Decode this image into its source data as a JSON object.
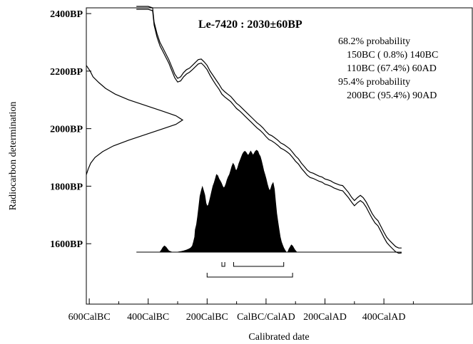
{
  "chart_data": {
    "type": "area",
    "title": "Le-7420 : 2030±60BP",
    "xlabel": "Calibrated date",
    "ylabel": "Radiocarbon determination",
    "yticks": [
      "2400BP",
      "2200BP",
      "2000BP",
      "1800BP",
      "1600BP"
    ],
    "ytick_values": [
      2400,
      2200,
      2000,
      1800,
      1600
    ],
    "ylim": [
      1390,
      2420
    ],
    "xticks": [
      "600CalBC",
      "400CalBC",
      "200CalBC",
      "CalBC/CalAD",
      "200CalAD",
      "400CalAD"
    ],
    "xtick_values": [
      -600,
      -400,
      -200,
      0,
      200,
      400
    ],
    "xlim": [
      -610,
      700
    ],
    "annotations": [
      "68.2% probability",
      "150BC ( 0.8%) 140BC",
      "110BC (67.4%) 60AD",
      "95.4% probability",
      "200BC (95.4%) 90AD"
    ],
    "ranges_68": [
      [
        -150,
        -140
      ],
      [
        -110,
        60
      ]
    ],
    "ranges_95": [
      [
        -200,
        90
      ]
    ],
    "calibration_curve": {
      "upper": [
        [
          -440,
          2425
        ],
        [
          -400,
          2425
        ],
        [
          -385,
          2420
        ],
        [
          -380,
          2370
        ],
        [
          -370,
          2330
        ],
        [
          -360,
          2300
        ],
        [
          -350,
          2280
        ],
        [
          -340,
          2260
        ],
        [
          -330,
          2240
        ],
        [
          -320,
          2215
        ],
        [
          -310,
          2190
        ],
        [
          -300,
          2175
        ],
        [
          -290,
          2180
        ],
        [
          -280,
          2195
        ],
        [
          -270,
          2205
        ],
        [
          -260,
          2210
        ],
        [
          -250,
          2220
        ],
        [
          -240,
          2230
        ],
        [
          -230,
          2240
        ],
        [
          -220,
          2242
        ],
        [
          -210,
          2232
        ],
        [
          -200,
          2220
        ],
        [
          -190,
          2200
        ],
        [
          -180,
          2185
        ],
        [
          -170,
          2170
        ],
        [
          -160,
          2155
        ],
        [
          -150,
          2138
        ],
        [
          -140,
          2128
        ],
        [
          -130,
          2120
        ],
        [
          -120,
          2112
        ],
        [
          -110,
          2100
        ],
        [
          -100,
          2088
        ],
        [
          -90,
          2080
        ],
        [
          -80,
          2070
        ],
        [
          -70,
          2060
        ],
        [
          -60,
          2050
        ],
        [
          -50,
          2040
        ],
        [
          -40,
          2030
        ],
        [
          -30,
          2020
        ],
        [
          -20,
          2012
        ],
        [
          -10,
          2002
        ],
        [
          0,
          1990
        ],
        [
          10,
          1980
        ],
        [
          20,
          1975
        ],
        [
          30,
          1968
        ],
        [
          40,
          1960
        ],
        [
          50,
          1950
        ],
        [
          60,
          1945
        ],
        [
          70,
          1938
        ],
        [
          80,
          1930
        ],
        [
          90,
          1918
        ],
        [
          100,
          1905
        ],
        [
          110,
          1895
        ],
        [
          120,
          1880
        ],
        [
          130,
          1868
        ],
        [
          140,
          1856
        ],
        [
          150,
          1848
        ],
        [
          160,
          1845
        ],
        [
          170,
          1840
        ],
        [
          180,
          1835
        ],
        [
          190,
          1832
        ],
        [
          200,
          1825
        ],
        [
          210,
          1822
        ],
        [
          220,
          1818
        ],
        [
          230,
          1812
        ],
        [
          240,
          1808
        ],
        [
          250,
          1804
        ],
        [
          260,
          1802
        ],
        [
          270,
          1790
        ],
        [
          280,
          1778
        ],
        [
          290,
          1762
        ],
        [
          300,
          1750
        ],
        [
          310,
          1760
        ],
        [
          320,
          1768
        ],
        [
          330,
          1760
        ],
        [
          340,
          1745
        ],
        [
          350,
          1725
        ],
        [
          360,
          1705
        ],
        [
          370,
          1690
        ],
        [
          380,
          1680
        ],
        [
          390,
          1660
        ],
        [
          400,
          1640
        ],
        [
          410,
          1622
        ],
        [
          420,
          1610
        ],
        [
          430,
          1600
        ],
        [
          440,
          1590
        ],
        [
          450,
          1585
        ],
        [
          460,
          1585
        ]
      ],
      "lower": [
        [
          -440,
          2415
        ],
        [
          -400,
          2415
        ],
        [
          -385,
          2410
        ],
        [
          -380,
          2360
        ],
        [
          -370,
          2318
        ],
        [
          -360,
          2288
        ],
        [
          -350,
          2268
        ],
        [
          -340,
          2248
        ],
        [
          -330,
          2228
        ],
        [
          -320,
          2202
        ],
        [
          -310,
          2177
        ],
        [
          -300,
          2162
        ],
        [
          -290,
          2166
        ],
        [
          -280,
          2180
        ],
        [
          -270,
          2190
        ],
        [
          -260,
          2196
        ],
        [
          -250,
          2205
        ],
        [
          -240,
          2215
        ],
        [
          -230,
          2225
        ],
        [
          -220,
          2228
        ],
        [
          -210,
          2218
        ],
        [
          -200,
          2205
        ],
        [
          -190,
          2185
        ],
        [
          -180,
          2168
        ],
        [
          -170,
          2152
        ],
        [
          -160,
          2138
        ],
        [
          -150,
          2120
        ],
        [
          -140,
          2110
        ],
        [
          -130,
          2102
        ],
        [
          -120,
          2094
        ],
        [
          -110,
          2082
        ],
        [
          -100,
          2070
        ],
        [
          -90,
          2062
        ],
        [
          -80,
          2052
        ],
        [
          -70,
          2042
        ],
        [
          -60,
          2032
        ],
        [
          -50,
          2022
        ],
        [
          -40,
          2012
        ],
        [
          -30,
          2002
        ],
        [
          -20,
          1994
        ],
        [
          -10,
          1984
        ],
        [
          0,
          1972
        ],
        [
          10,
          1962
        ],
        [
          20,
          1957
        ],
        [
          30,
          1950
        ],
        [
          40,
          1942
        ],
        [
          50,
          1932
        ],
        [
          60,
          1927
        ],
        [
          70,
          1920
        ],
        [
          80,
          1912
        ],
        [
          90,
          1900
        ],
        [
          100,
          1887
        ],
        [
          110,
          1877
        ],
        [
          120,
          1862
        ],
        [
          130,
          1850
        ],
        [
          140,
          1838
        ],
        [
          150,
          1830
        ],
        [
          160,
          1827
        ],
        [
          170,
          1822
        ],
        [
          180,
          1817
        ],
        [
          190,
          1814
        ],
        [
          200,
          1807
        ],
        [
          210,
          1804
        ],
        [
          220,
          1800
        ],
        [
          230,
          1794
        ],
        [
          240,
          1790
        ],
        [
          250,
          1786
        ],
        [
          260,
          1784
        ],
        [
          270,
          1772
        ],
        [
          280,
          1760
        ],
        [
          290,
          1745
        ],
        [
          300,
          1732
        ],
        [
          310,
          1742
        ],
        [
          320,
          1750
        ],
        [
          330,
          1742
        ],
        [
          340,
          1727
        ],
        [
          350,
          1707
        ],
        [
          360,
          1688
        ],
        [
          370,
          1672
        ],
        [
          380,
          1662
        ],
        [
          390,
          1642
        ],
        [
          400,
          1622
        ],
        [
          410,
          1604
        ],
        [
          420,
          1592
        ],
        [
          430,
          1582
        ],
        [
          440,
          1572
        ],
        [
          450,
          1567
        ],
        [
          460,
          1568
        ]
      ]
    },
    "radiocarbon_distribution": [
      [
        2220,
        0.0
      ],
      [
        2200,
        0.04
      ],
      [
        2180,
        0.07
      ],
      [
        2160,
        0.13
      ],
      [
        2140,
        0.2
      ],
      [
        2120,
        0.3
      ],
      [
        2100,
        0.44
      ],
      [
        2080,
        0.62
      ],
      [
        2060,
        0.8
      ],
      [
        2045,
        0.93
      ],
      [
        2030,
        1.0
      ],
      [
        2015,
        0.93
      ],
      [
        2000,
        0.8
      ],
      [
        1980,
        0.62
      ],
      [
        1960,
        0.44
      ],
      [
        1940,
        0.28
      ],
      [
        1920,
        0.17
      ],
      [
        1900,
        0.09
      ],
      [
        1880,
        0.045
      ],
      [
        1860,
        0.02
      ],
      [
        1840,
        0.0
      ]
    ],
    "calibrated_distribution": [
      [
        -360,
        0.0
      ],
      [
        -355,
        0.02
      ],
      [
        -350,
        0.045
      ],
      [
        -345,
        0.06
      ],
      [
        -340,
        0.05
      ],
      [
        -335,
        0.03
      ],
      [
        -330,
        0.012
      ],
      [
        -320,
        0.0
      ],
      [
        -300,
        0.0
      ],
      [
        -290,
        0.005
      ],
      [
        -280,
        0.012
      ],
      [
        -270,
        0.02
      ],
      [
        -262,
        0.03
      ],
      [
        -256,
        0.04
      ],
      [
        -250,
        0.06
      ],
      [
        -246,
        0.1
      ],
      [
        -242,
        0.15
      ],
      [
        -240,
        0.22
      ],
      [
        -236,
        0.27
      ],
      [
        -232,
        0.35
      ],
      [
        -228,
        0.45
      ],
      [
        -224,
        0.55
      ],
      [
        -220,
        0.6
      ],
      [
        -216,
        0.64
      ],
      [
        -212,
        0.6
      ],
      [
        -208,
        0.56
      ],
      [
        -204,
        0.48
      ],
      [
        -200,
        0.45
      ],
      [
        -196,
        0.46
      ],
      [
        -192,
        0.5
      ],
      [
        -188,
        0.55
      ],
      [
        -184,
        0.6
      ],
      [
        -180,
        0.65
      ],
      [
        -176,
        0.68
      ],
      [
        -172,
        0.72
      ],
      [
        -168,
        0.76
      ],
      [
        -164,
        0.75
      ],
      [
        -160,
        0.72
      ],
      [
        -156,
        0.7
      ],
      [
        -152,
        0.68
      ],
      [
        -148,
        0.65
      ],
      [
        -144,
        0.63
      ],
      [
        -140,
        0.64
      ],
      [
        -136,
        0.67
      ],
      [
        -132,
        0.71
      ],
      [
        -128,
        0.74
      ],
      [
        -124,
        0.76
      ],
      [
        -120,
        0.8
      ],
      [
        -116,
        0.84
      ],
      [
        -112,
        0.87
      ],
      [
        -108,
        0.85
      ],
      [
        -104,
        0.81
      ],
      [
        -100,
        0.8
      ],
      [
        -96,
        0.83
      ],
      [
        -92,
        0.87
      ],
      [
        -88,
        0.9
      ],
      [
        -84,
        0.93
      ],
      [
        -80,
        0.96
      ],
      [
        -76,
        0.98
      ],
      [
        -72,
        0.99
      ],
      [
        -68,
        0.98
      ],
      [
        -64,
        0.96
      ],
      [
        -60,
        0.95
      ],
      [
        -56,
        0.97
      ],
      [
        -52,
        0.99
      ],
      [
        -48,
        0.97
      ],
      [
        -44,
        0.95
      ],
      [
        -40,
        0.97
      ],
      [
        -36,
        0.99
      ],
      [
        -32,
        1.0
      ],
      [
        -28,
        0.99
      ],
      [
        -24,
        0.96
      ],
      [
        -20,
        0.94
      ],
      [
        -16,
        0.9
      ],
      [
        -12,
        0.85
      ],
      [
        -8,
        0.8
      ],
      [
        -4,
        0.76
      ],
      [
        0,
        0.72
      ],
      [
        4,
        0.67
      ],
      [
        8,
        0.63
      ],
      [
        12,
        0.6
      ],
      [
        16,
        0.62
      ],
      [
        20,
        0.66
      ],
      [
        24,
        0.68
      ],
      [
        28,
        0.62
      ],
      [
        32,
        0.5
      ],
      [
        36,
        0.38
      ],
      [
        40,
        0.3
      ],
      [
        44,
        0.22
      ],
      [
        48,
        0.15
      ],
      [
        52,
        0.1
      ],
      [
        56,
        0.07
      ],
      [
        60,
        0.04
      ],
      [
        64,
        0.02
      ],
      [
        68,
        0.0
      ],
      [
        74,
        0.0
      ],
      [
        78,
        0.03
      ],
      [
        82,
        0.05
      ],
      [
        86,
        0.07
      ],
      [
        90,
        0.06
      ],
      [
        94,
        0.04
      ],
      [
        98,
        0.02
      ],
      [
        104,
        0.0
      ]
    ]
  }
}
